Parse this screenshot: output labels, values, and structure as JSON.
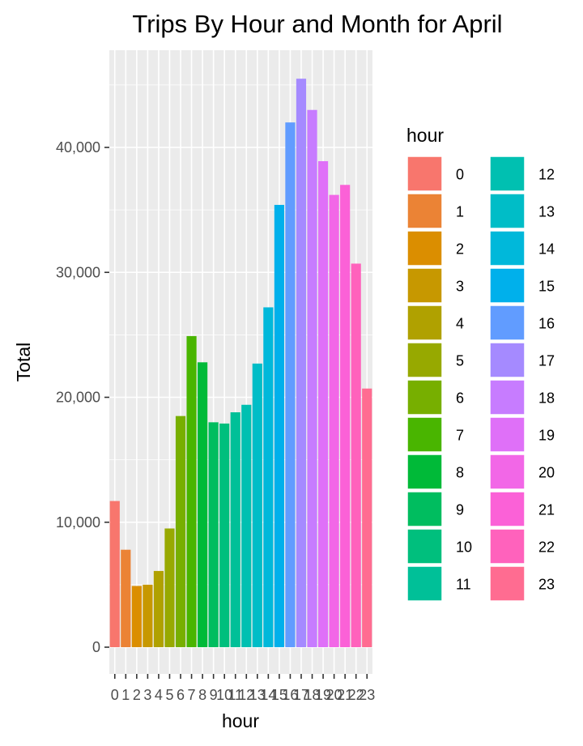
{
  "chart_data": {
    "type": "bar",
    "title": "Trips By Hour and Month for April",
    "xlabel": "hour",
    "ylabel": "Total",
    "categories": [
      "0",
      "1",
      "2",
      "3",
      "4",
      "5",
      "6",
      "7",
      "8",
      "9",
      "10",
      "11",
      "12",
      "13",
      "14",
      "15",
      "16",
      "17",
      "18",
      "19",
      "20",
      "21",
      "22",
      "23"
    ],
    "values": [
      11700,
      7800,
      4900,
      5000,
      6100,
      9500,
      18500,
      24900,
      22800,
      18000,
      17900,
      18800,
      19400,
      22700,
      27200,
      35400,
      42000,
      45500,
      43000,
      38900,
      36200,
      37000,
      30700,
      20700
    ],
    "y_ticks": [
      0,
      10000,
      20000,
      30000,
      40000
    ],
    "y_tick_labels": [
      "0",
      "10,000",
      "20,000",
      "30,000",
      "40,000"
    ],
    "ylim": [
      0,
      48000
    ],
    "grid": true,
    "legend": {
      "title": "hour",
      "position": "right",
      "columns": 2
    },
    "colors": [
      "#F8766D",
      "#EB8335",
      "#DB8E00",
      "#C79800",
      "#B0A100",
      "#97A900",
      "#77AF00",
      "#49B500",
      "#00BA38",
      "#00BD5F",
      "#00BF7D",
      "#00C098",
      "#00C0B1",
      "#00BDC7",
      "#00B8DA",
      "#00B0EB",
      "#619CFF",
      "#A58AFF",
      "#C77CFF",
      "#DF70F8",
      "#F267E7",
      "#FB61D7",
      "#FF62BC",
      "#FF6C91"
    ]
  }
}
